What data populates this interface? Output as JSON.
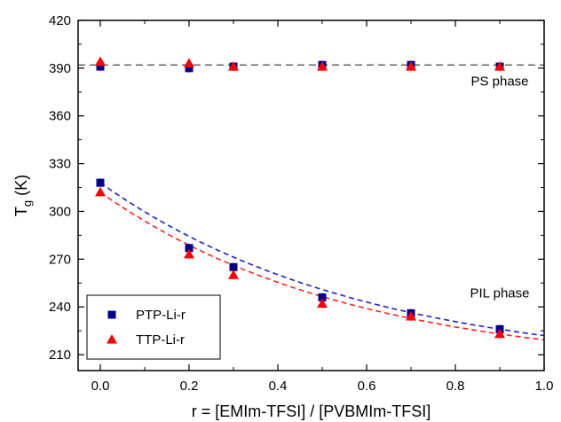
{
  "chart_data": {
    "type": "scatter",
    "xlabel": "r = [EMIm-TFSI] / [PVBMIm-TFSI]",
    "ylabel_main": "T",
    "ylabel_sub": "g",
    "ylabel_unit": " (K)",
    "xlim": [
      -0.05,
      1.0
    ],
    "ylim": [
      200,
      420
    ],
    "xticks": [
      0.0,
      0.2,
      0.4,
      0.6,
      0.8,
      1.0
    ],
    "xtick_labels": [
      "0.0",
      "0.2",
      "0.4",
      "0.6",
      "0.8",
      "1.0"
    ],
    "yticks": [
      210,
      240,
      270,
      300,
      330,
      360,
      390,
      420
    ],
    "ytick_labels": [
      "210",
      "240",
      "270",
      "300",
      "330",
      "360",
      "390",
      "420"
    ],
    "grid": false,
    "legend_position": "bottom-left",
    "annotations": [
      {
        "text": "PS phase",
        "x": 0.9,
        "y": 379
      },
      {
        "text": "PIL phase",
        "x": 0.9,
        "y": 246
      }
    ],
    "reference_line": {
      "y": 392,
      "style": "dashed",
      "color": "#555555"
    },
    "series": [
      {
        "name": "PTP-Li-r",
        "marker": "square",
        "color": "#00008b",
        "x": [
          0.0,
          0.2,
          0.3,
          0.5,
          0.7,
          0.9,
          0.0,
          0.2,
          0.3,
          0.5,
          0.7,
          0.9
        ],
        "y": [
          318,
          277,
          265,
          246,
          236,
          226,
          391,
          390,
          391,
          392,
          392,
          391
        ],
        "fit_color": "#2222cc"
      },
      {
        "name": "TTP-Li-r",
        "marker": "triangle",
        "color": "#ff0000",
        "x": [
          0.0,
          0.2,
          0.3,
          0.5,
          0.7,
          0.9,
          0.0,
          0.2,
          0.3,
          0.5,
          0.7,
          0.9
        ],
        "y": [
          312,
          273,
          260,
          242,
          234,
          223,
          394,
          393,
          391,
          391,
          391,
          391
        ],
        "fit_color": "#ff2222"
      }
    ]
  }
}
